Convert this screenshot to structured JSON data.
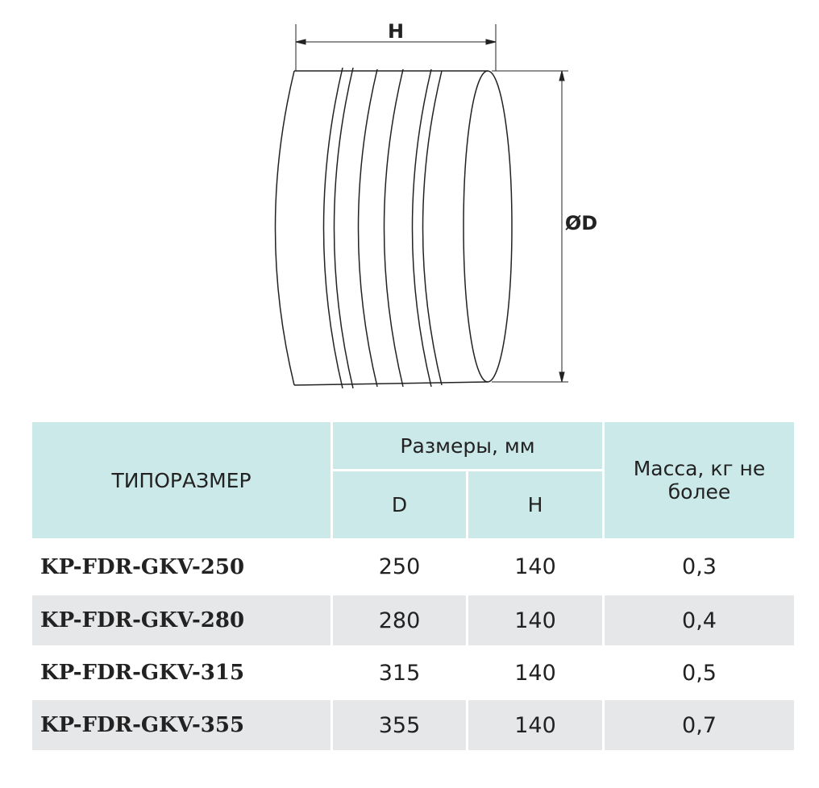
{
  "drawing": {
    "h_label": "H",
    "d_label": "ØD"
  },
  "table": {
    "header": {
      "type": "ТИПОРАЗМЕР",
      "sizes": "Размеры, мм",
      "d": "D",
      "h": "H",
      "mass": "Масса, кг не более"
    },
    "rows": [
      [
        "KP-FDR-GKV-250",
        250,
        140,
        "0,3"
      ],
      [
        "KP-FDR-GKV-280",
        280,
        140,
        "0,4"
      ],
      [
        "KP-FDR-GKV-315",
        315,
        140,
        "0,5"
      ],
      [
        "KP-FDR-GKV-355",
        355,
        140,
        "0,7"
      ]
    ]
  }
}
